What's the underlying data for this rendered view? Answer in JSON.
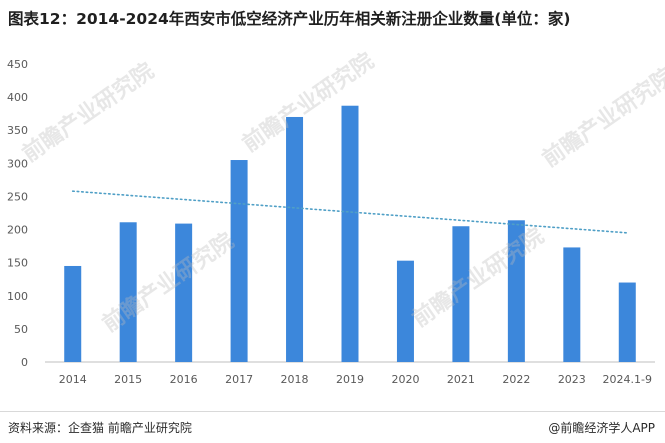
{
  "title": "图表12：2014-2024年西安市低空经济产业历年相关新注册企业数量(单位：家)",
  "source": "资料来源：企查猫 前瞻产业研究院",
  "brand": "@前瞻经济学人APP",
  "watermark": "前瞻产业研究院",
  "colors": {
    "bar": "#3c87db",
    "trend": "#4f9fc6",
    "axis": "#bfbfbf",
    "text": "#595959"
  },
  "chart_data": {
    "type": "bar",
    "categories": [
      "2014",
      "2015",
      "2016",
      "2017",
      "2018",
      "2019",
      "2020",
      "2021",
      "2022",
      "2023",
      "2024.1-9"
    ],
    "values": [
      145,
      211,
      209,
      305,
      370,
      387,
      153,
      205,
      214,
      173,
      120
    ],
    "trendline": {
      "start": 258,
      "end": 195
    },
    "ylim": [
      0,
      450
    ],
    "yticks": [
      0,
      50,
      100,
      150,
      200,
      250,
      300,
      350,
      400,
      450
    ],
    "grid": false,
    "legend": "none"
  }
}
